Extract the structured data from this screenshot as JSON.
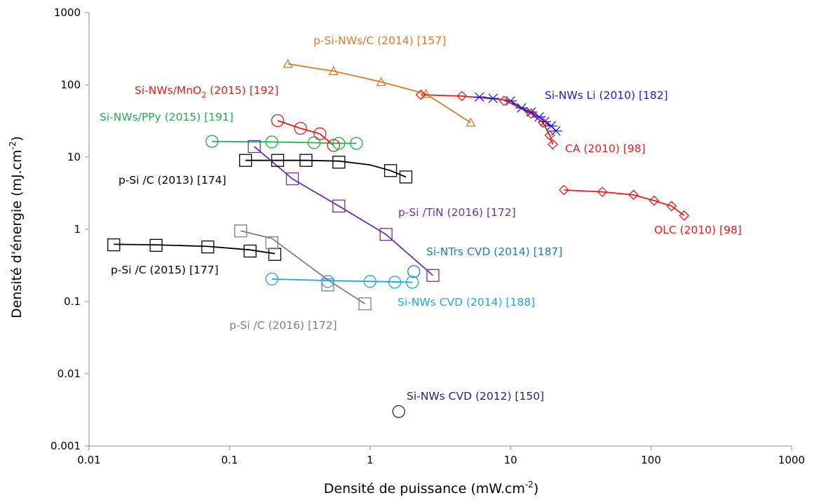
{
  "chart_data": {
    "type": "scatter",
    "xlabel": "Densité de puissance (mW.cm",
    "xlabel_sup": "-2",
    "xlabel_end": ")",
    "ylabel": "Densité d'énergie (mJ.cm",
    "ylabel_sup": "-2",
    "ylabel_end": ")",
    "x_scale": "log",
    "y_scale": "log",
    "xlim": [
      0.01,
      1000
    ],
    "ylim": [
      0.001,
      1000
    ],
    "x_ticks": [
      {
        "value": 0.01,
        "label": "0.01"
      },
      {
        "value": 0.1,
        "label": "0.1"
      },
      {
        "value": 1,
        "label": "1"
      },
      {
        "value": 10,
        "label": "10"
      },
      {
        "value": 100,
        "label": "100"
      },
      {
        "value": 1000,
        "label": "1000"
      }
    ],
    "y_ticks": [
      {
        "value": 0.001,
        "label": "0.001"
      },
      {
        "value": 0.01,
        "label": "0.01"
      },
      {
        "value": 0.1,
        "label": "0.1"
      },
      {
        "value": 1,
        "label": "1"
      },
      {
        "value": 10,
        "label": "10"
      },
      {
        "value": 100,
        "label": "100"
      },
      {
        "value": 1000,
        "label": "1000"
      }
    ],
    "grid": false,
    "series": [
      {
        "id": "psinws-c-2014",
        "name": "p-Si-NWs/C  (2014) [157]",
        "color": "#D97A2B",
        "marker": "triangle",
        "points": [
          [
            0.26,
            195
          ],
          [
            0.55,
            155
          ],
          [
            1.2,
            110
          ],
          [
            2.5,
            75
          ],
          [
            5.2,
            30
          ]
        ],
        "line": [
          [
            0.26,
            195
          ],
          [
            0.55,
            155
          ],
          [
            1.2,
            110
          ],
          [
            2.5,
            75
          ],
          [
            5.2,
            30
          ]
        ]
      },
      {
        "id": "sinws-li-2010",
        "name": "Si-NWs Li (2010) [182]",
        "color": "#2020D0",
        "marker": "star",
        "points": [
          [
            6,
            68
          ],
          [
            7.5,
            65
          ],
          [
            10,
            60
          ],
          [
            12,
            48
          ],
          [
            14,
            42
          ],
          [
            16,
            36
          ],
          [
            17.5,
            31
          ],
          [
            19.5,
            27
          ],
          [
            21,
            23
          ]
        ],
        "line": [
          [
            6,
            68
          ],
          [
            7.5,
            65
          ],
          [
            10,
            60
          ],
          [
            12,
            48
          ],
          [
            14,
            42
          ],
          [
            16,
            36
          ],
          [
            17.5,
            31
          ],
          [
            19.5,
            27
          ],
          [
            21,
            23
          ]
        ]
      },
      {
        "id": "ca-2010",
        "name": "CA (2010) [98]",
        "color": "#E81B1B",
        "marker": "diamond",
        "points": [
          [
            2.3,
            73
          ],
          [
            4.5,
            70
          ],
          [
            9,
            60
          ],
          [
            14,
            40
          ],
          [
            17,
            30
          ],
          [
            19,
            20
          ],
          [
            20,
            15
          ]
        ],
        "line": [
          [
            2.3,
            73
          ],
          [
            4.5,
            70
          ],
          [
            9,
            62
          ],
          [
            14,
            40
          ],
          [
            17,
            30
          ],
          [
            19,
            20
          ],
          [
            20,
            15
          ]
        ]
      },
      {
        "id": "sinws-mno2-2015",
        "name": "Si-NWs/MnO",
        "name_sub": "2",
        "name_end": " (2015) [192]",
        "color": "#E81B1B",
        "marker": "circle",
        "points": [
          [
            0.22,
            32
          ],
          [
            0.32,
            25
          ],
          [
            0.44,
            21
          ],
          [
            0.55,
            14.5
          ]
        ],
        "line": [
          [
            0.22,
            32
          ],
          [
            0.32,
            25
          ],
          [
            0.44,
            21
          ],
          [
            0.55,
            14.5
          ]
        ]
      },
      {
        "id": "sinws-ppy-2015",
        "name": "Si-NWs/PPy (2015) [191]",
        "color": "#1FAF4B",
        "marker": "circle",
        "points": [
          [
            0.075,
            16.5
          ],
          [
            0.2,
            16.2
          ],
          [
            0.4,
            15.8
          ],
          [
            0.6,
            15.5
          ],
          [
            0.8,
            15.5
          ]
        ],
        "line": [
          [
            0.075,
            16.5
          ],
          [
            0.2,
            16.2
          ],
          [
            0.4,
            15.8
          ],
          [
            0.6,
            15.5
          ],
          [
            0.8,
            15.5
          ]
        ]
      },
      {
        "id": "psi-c-2013",
        "name": "p-Si /C (2013) [174]",
        "color": "#000000",
        "marker": "square",
        "points": [
          [
            0.13,
            9
          ],
          [
            0.22,
            9
          ],
          [
            0.35,
            9
          ],
          [
            0.6,
            8.5
          ],
          [
            1.4,
            6.5
          ],
          [
            1.8,
            5.3
          ]
        ],
        "line": [
          [
            0.13,
            9
          ],
          [
            0.22,
            9
          ],
          [
            0.35,
            9
          ],
          [
            0.6,
            8.8
          ],
          [
            1.0,
            7.8
          ],
          [
            1.4,
            6.5
          ],
          [
            1.8,
            5.3
          ]
        ]
      },
      {
        "id": "psi-tin-2016",
        "name": "p-Si /TiN (2016) [172]",
        "color": "#7030A0",
        "marker": "square",
        "points": [
          [
            0.15,
            14
          ],
          [
            0.28,
            5
          ],
          [
            0.6,
            2.1
          ],
          [
            1.3,
            0.85
          ],
          [
            2.8,
            0.23
          ]
        ],
        "line": [
          [
            0.15,
            14
          ],
          [
            0.28,
            5
          ],
          [
            0.6,
            2.1
          ],
          [
            1.3,
            0.85
          ],
          [
            2.8,
            0.23
          ]
        ]
      },
      {
        "id": "olc-2010",
        "name": "OLC (2010) [98]",
        "color": "#E81B1B",
        "marker": "diamond",
        "points": [
          [
            24,
            3.5
          ],
          [
            45,
            3.3
          ],
          [
            75,
            3.0
          ],
          [
            105,
            2.5
          ],
          [
            140,
            2.1
          ],
          [
            172,
            1.55
          ]
        ],
        "line": [
          [
            24,
            3.5
          ],
          [
            45,
            3.3
          ],
          [
            75,
            3.0
          ],
          [
            105,
            2.5
          ],
          [
            140,
            2.1
          ],
          [
            172,
            1.55
          ]
        ]
      },
      {
        "id": "psi-c-2015",
        "name": "p-Si /C (2015) [177]",
        "color": "#000000",
        "marker": "square",
        "points": [
          [
            0.015,
            0.61
          ],
          [
            0.03,
            0.6
          ],
          [
            0.07,
            0.57
          ],
          [
            0.14,
            0.5
          ],
          [
            0.21,
            0.45
          ]
        ],
        "line": [
          [
            0.015,
            0.62
          ],
          [
            0.03,
            0.61
          ],
          [
            0.07,
            0.58
          ],
          [
            0.14,
            0.52
          ],
          [
            0.21,
            0.46
          ]
        ]
      },
      {
        "id": "psi-c-2016",
        "name": "p-Si /C (2016) [172]",
        "color": "#808080",
        "marker": "square",
        "points": [
          [
            0.12,
            0.95
          ],
          [
            0.2,
            0.65
          ],
          [
            0.5,
            0.17
          ],
          [
            0.92,
            0.093
          ]
        ],
        "line": [
          [
            0.12,
            0.95
          ],
          [
            0.2,
            0.75
          ],
          [
            0.5,
            0.2
          ],
          [
            0.92,
            0.093
          ]
        ]
      },
      {
        "id": "sintrs-cvd-2014",
        "name": "Si-NTrs CVD (2014) [187]",
        "color": "#1F78C8",
        "marker": "circle",
        "points": [
          [
            2.05,
            0.26
          ]
        ],
        "line": []
      },
      {
        "id": "sinws-cvd-2014",
        "name": "Si-NWs CVD (2014) [188]",
        "color": "#1CA8E0",
        "marker": "circle",
        "points": [
          [
            0.2,
            0.205
          ],
          [
            0.5,
            0.19
          ],
          [
            1.0,
            0.19
          ],
          [
            1.5,
            0.185
          ],
          [
            2.0,
            0.185
          ]
        ],
        "line": [
          [
            0.2,
            0.205
          ],
          [
            0.5,
            0.195
          ],
          [
            1.0,
            0.19
          ],
          [
            1.5,
            0.188
          ],
          [
            2.0,
            0.185
          ]
        ]
      },
      {
        "id": "sinws-cvd-2012",
        "name": "Si-NWs CVD (2012) [150]",
        "color": "#1F2A6B",
        "marker": "circle",
        "points": [
          [
            1.6,
            0.003
          ]
        ],
        "line": []
      }
    ]
  }
}
